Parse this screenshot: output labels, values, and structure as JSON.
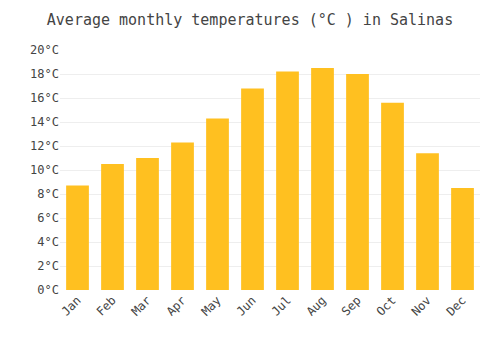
{
  "chart_data": {
    "type": "bar",
    "title": "Average monthly temperatures (°C ) in Salinas",
    "categories": [
      "Jan",
      "Feb",
      "Mar",
      "Apr",
      "May",
      "Jun",
      "Jul",
      "Aug",
      "Sep",
      "Oct",
      "Nov",
      "Dec"
    ],
    "values": [
      8.7,
      10.5,
      11.0,
      12.3,
      14.3,
      16.8,
      18.2,
      18.5,
      18.0,
      15.6,
      11.4,
      8.5
    ],
    "color": "#FFC020",
    "ylim": [
      0,
      20
    ],
    "yticks": [
      {
        "value": 0,
        "label": "0°C"
      },
      {
        "value": 2,
        "label": "2°C"
      },
      {
        "value": 4,
        "label": "4°C"
      },
      {
        "value": 6,
        "label": "6°C"
      },
      {
        "value": 8,
        "label": "8°C"
      },
      {
        "value": 10,
        "label": "10°C"
      },
      {
        "value": 12,
        "label": "12°C"
      },
      {
        "value": 14,
        "label": "14°C"
      },
      {
        "value": 16,
        "label": "16°C"
      },
      {
        "value": 18,
        "label": "18°C"
      },
      {
        "value": 20,
        "label": "20°C"
      }
    ],
    "grid": true
  }
}
